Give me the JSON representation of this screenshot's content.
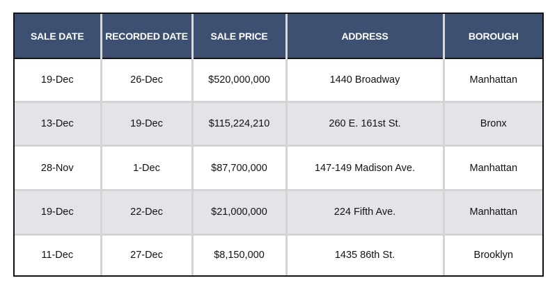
{
  "table": {
    "headers": [
      "SALE DATE",
      "RECORDED DATE",
      "SALE PRICE",
      "ADDRESS",
      "BOROUGH"
    ],
    "rows": [
      [
        "19-Dec",
        "26-Dec",
        "$520,000,000",
        "1440 Broadway",
        "Manhattan"
      ],
      [
        "13-Dec",
        "19-Dec",
        "$115,224,210",
        "260 E. 161st St.",
        "Bronx"
      ],
      [
        "28-Nov",
        "1-Dec",
        "$87,700,000",
        "147-149 Madison Ave.",
        "Manhattan"
      ],
      [
        "19-Dec",
        "22-Dec",
        "$21,000,000",
        "224 Fifth Ave.",
        "Manhattan"
      ],
      [
        "11-Dec",
        "27-Dec",
        "$8,150,000",
        "1435 86th St.",
        "Brooklyn"
      ]
    ]
  },
  "colors": {
    "header_bg": "#3d5072",
    "header_text": "#ffffff",
    "row_shade": "#e3e4e8",
    "row_plain": "#ffffff",
    "border": "#111111",
    "cell_divider": "#d4d4d4"
  }
}
